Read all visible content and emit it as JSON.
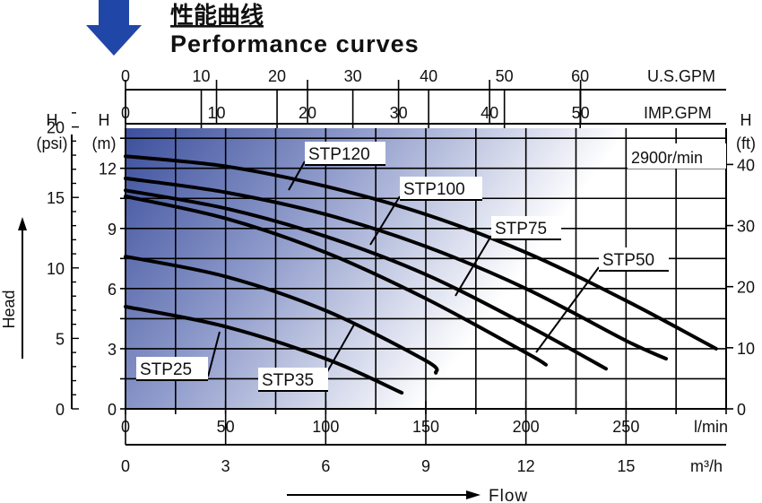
{
  "header": {
    "title_cn": "性能曲线",
    "title_en": "Performance curves"
  },
  "chart_data": {
    "type": "line",
    "title": "Performance curves",
    "speed_label": "2900r/min",
    "x_axis": {
      "label": "l/min",
      "ticks": [
        0,
        50,
        100,
        150,
        200,
        250
      ],
      "range": [
        0,
        300
      ]
    },
    "secondary_x_axes": [
      {
        "label": "U.S.GPM",
        "ticks": [
          "0",
          "10",
          "20",
          "30",
          "40",
          "50",
          "60"
        ]
      },
      {
        "label": "IMP.GPM",
        "ticks": [
          "0",
          "10",
          "20",
          "30",
          "40",
          "50"
        ]
      },
      {
        "label": "m³/h",
        "ticks": [
          "0",
          "3",
          "6",
          "9",
          "12",
          "15"
        ]
      }
    ],
    "y_axis": {
      "label": "H (m)",
      "label_line1": "H",
      "label_line2": "(m)",
      "ticks": [
        0,
        3,
        6,
        9,
        12
      ],
      "range": [
        0,
        14
      ]
    },
    "secondary_y_axes": [
      {
        "label_line1": "H",
        "label_line2": "(psi)",
        "ticks": [
          "0",
          "5",
          "10",
          "15",
          "20"
        ]
      },
      {
        "label_line1": "H",
        "label_line2": "(ft)",
        "ticks": [
          "0",
          "10",
          "20",
          "30",
          "40"
        ]
      }
    ],
    "side_label": "Head",
    "flow_label": "Flow",
    "grid": true,
    "series": [
      {
        "name": "STP120",
        "x": [
          0,
          50,
          100,
          150,
          200,
          250,
          295
        ],
        "y": [
          12.6,
          12.1,
          11.1,
          9.7,
          7.8,
          5.4,
          3.0
        ]
      },
      {
        "name": "STP100",
        "x": [
          0,
          50,
          100,
          150,
          200,
          250,
          270
        ],
        "y": [
          11.5,
          10.8,
          9.7,
          8.1,
          6.0,
          3.4,
          2.5
        ]
      },
      {
        "name": "STP75",
        "x": [
          0,
          50,
          100,
          150,
          200,
          240
        ],
        "y": [
          10.9,
          10.0,
          8.6,
          6.7,
          4.2,
          2.0
        ]
      },
      {
        "name": "STP50",
        "x": [
          0,
          50,
          100,
          150,
          200,
          210
        ],
        "y": [
          10.6,
          9.5,
          7.8,
          5.5,
          2.8,
          2.2
        ]
      },
      {
        "name": "STP35",
        "x": [
          0,
          50,
          100,
          150,
          155
        ],
        "y": [
          7.6,
          6.6,
          4.9,
          2.4,
          1.8
        ]
      },
      {
        "name": "STP25",
        "x": [
          0,
          50,
          100,
          138
        ],
        "y": [
          5.1,
          4.1,
          2.5,
          0.8
        ]
      }
    ]
  }
}
